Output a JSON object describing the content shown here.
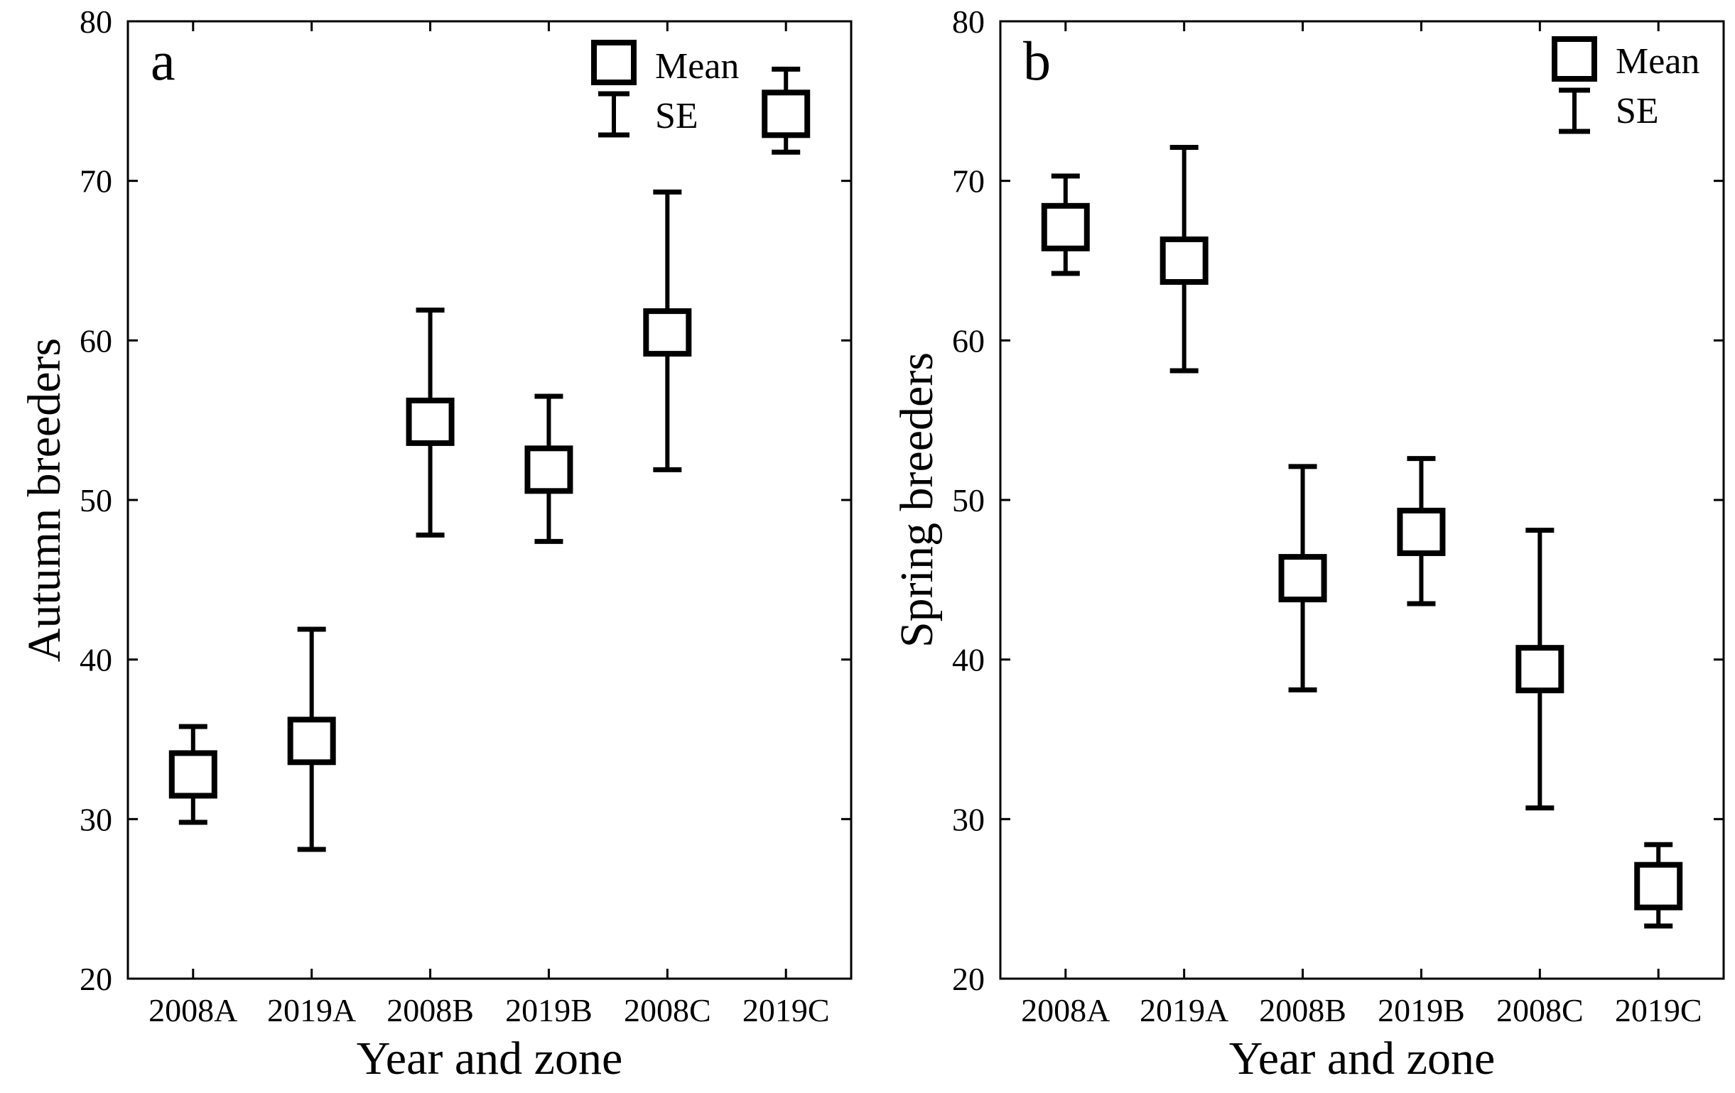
{
  "colors": {
    "ink": "#000000",
    "background": "#ffffff"
  },
  "chart_data": [
    {
      "type": "scatter",
      "panel": "a",
      "title": "",
      "xlabel": "Year and zone",
      "ylabel": "Autumn breeders",
      "ylim": [
        20,
        80
      ],
      "yticks": [
        20,
        30,
        40,
        50,
        60,
        70,
        80
      ],
      "ytick_labels": [
        "20",
        "30",
        "40",
        "50",
        "60",
        "70",
        "80"
      ],
      "categories": [
        "2008A",
        "2019A",
        "2008B",
        "2019B",
        "2008C",
        "2019C"
      ],
      "series": [
        {
          "name": "Mean",
          "marker": "open-square",
          "values": [
            32.8,
            34.9,
            54.9,
            51.9,
            60.5,
            74.2
          ],
          "se_low": [
            29.8,
            28.1,
            47.8,
            47.4,
            51.9,
            71.8
          ],
          "se_high": [
            35.8,
            41.9,
            61.9,
            56.5,
            69.3,
            77.0
          ]
        }
      ],
      "legend": {
        "position": "top-right",
        "entries": [
          "Mean",
          "SE"
        ]
      },
      "grid": false
    },
    {
      "type": "scatter",
      "panel": "b",
      "title": "",
      "xlabel": "Year and zone",
      "ylabel": "Spring breeders",
      "ylim": [
        20,
        80
      ],
      "yticks": [
        20,
        30,
        40,
        50,
        60,
        70,
        80
      ],
      "ytick_labels": [
        "20",
        "30",
        "40",
        "50",
        "60",
        "70",
        "80"
      ],
      "categories": [
        "2008A",
        "2019A",
        "2008B",
        "2019B",
        "2008C",
        "2019C"
      ],
      "series": [
        {
          "name": "Mean",
          "marker": "open-square",
          "values": [
            67.1,
            65.0,
            45.1,
            48.0,
            39.4,
            25.8
          ],
          "se_low": [
            64.2,
            58.1,
            38.1,
            43.5,
            30.7,
            23.3
          ],
          "se_high": [
            70.3,
            72.1,
            52.1,
            52.6,
            48.1,
            28.4
          ]
        }
      ],
      "legend": {
        "position": "top-right",
        "entries": [
          "Mean",
          "SE"
        ]
      },
      "grid": false
    }
  ]
}
